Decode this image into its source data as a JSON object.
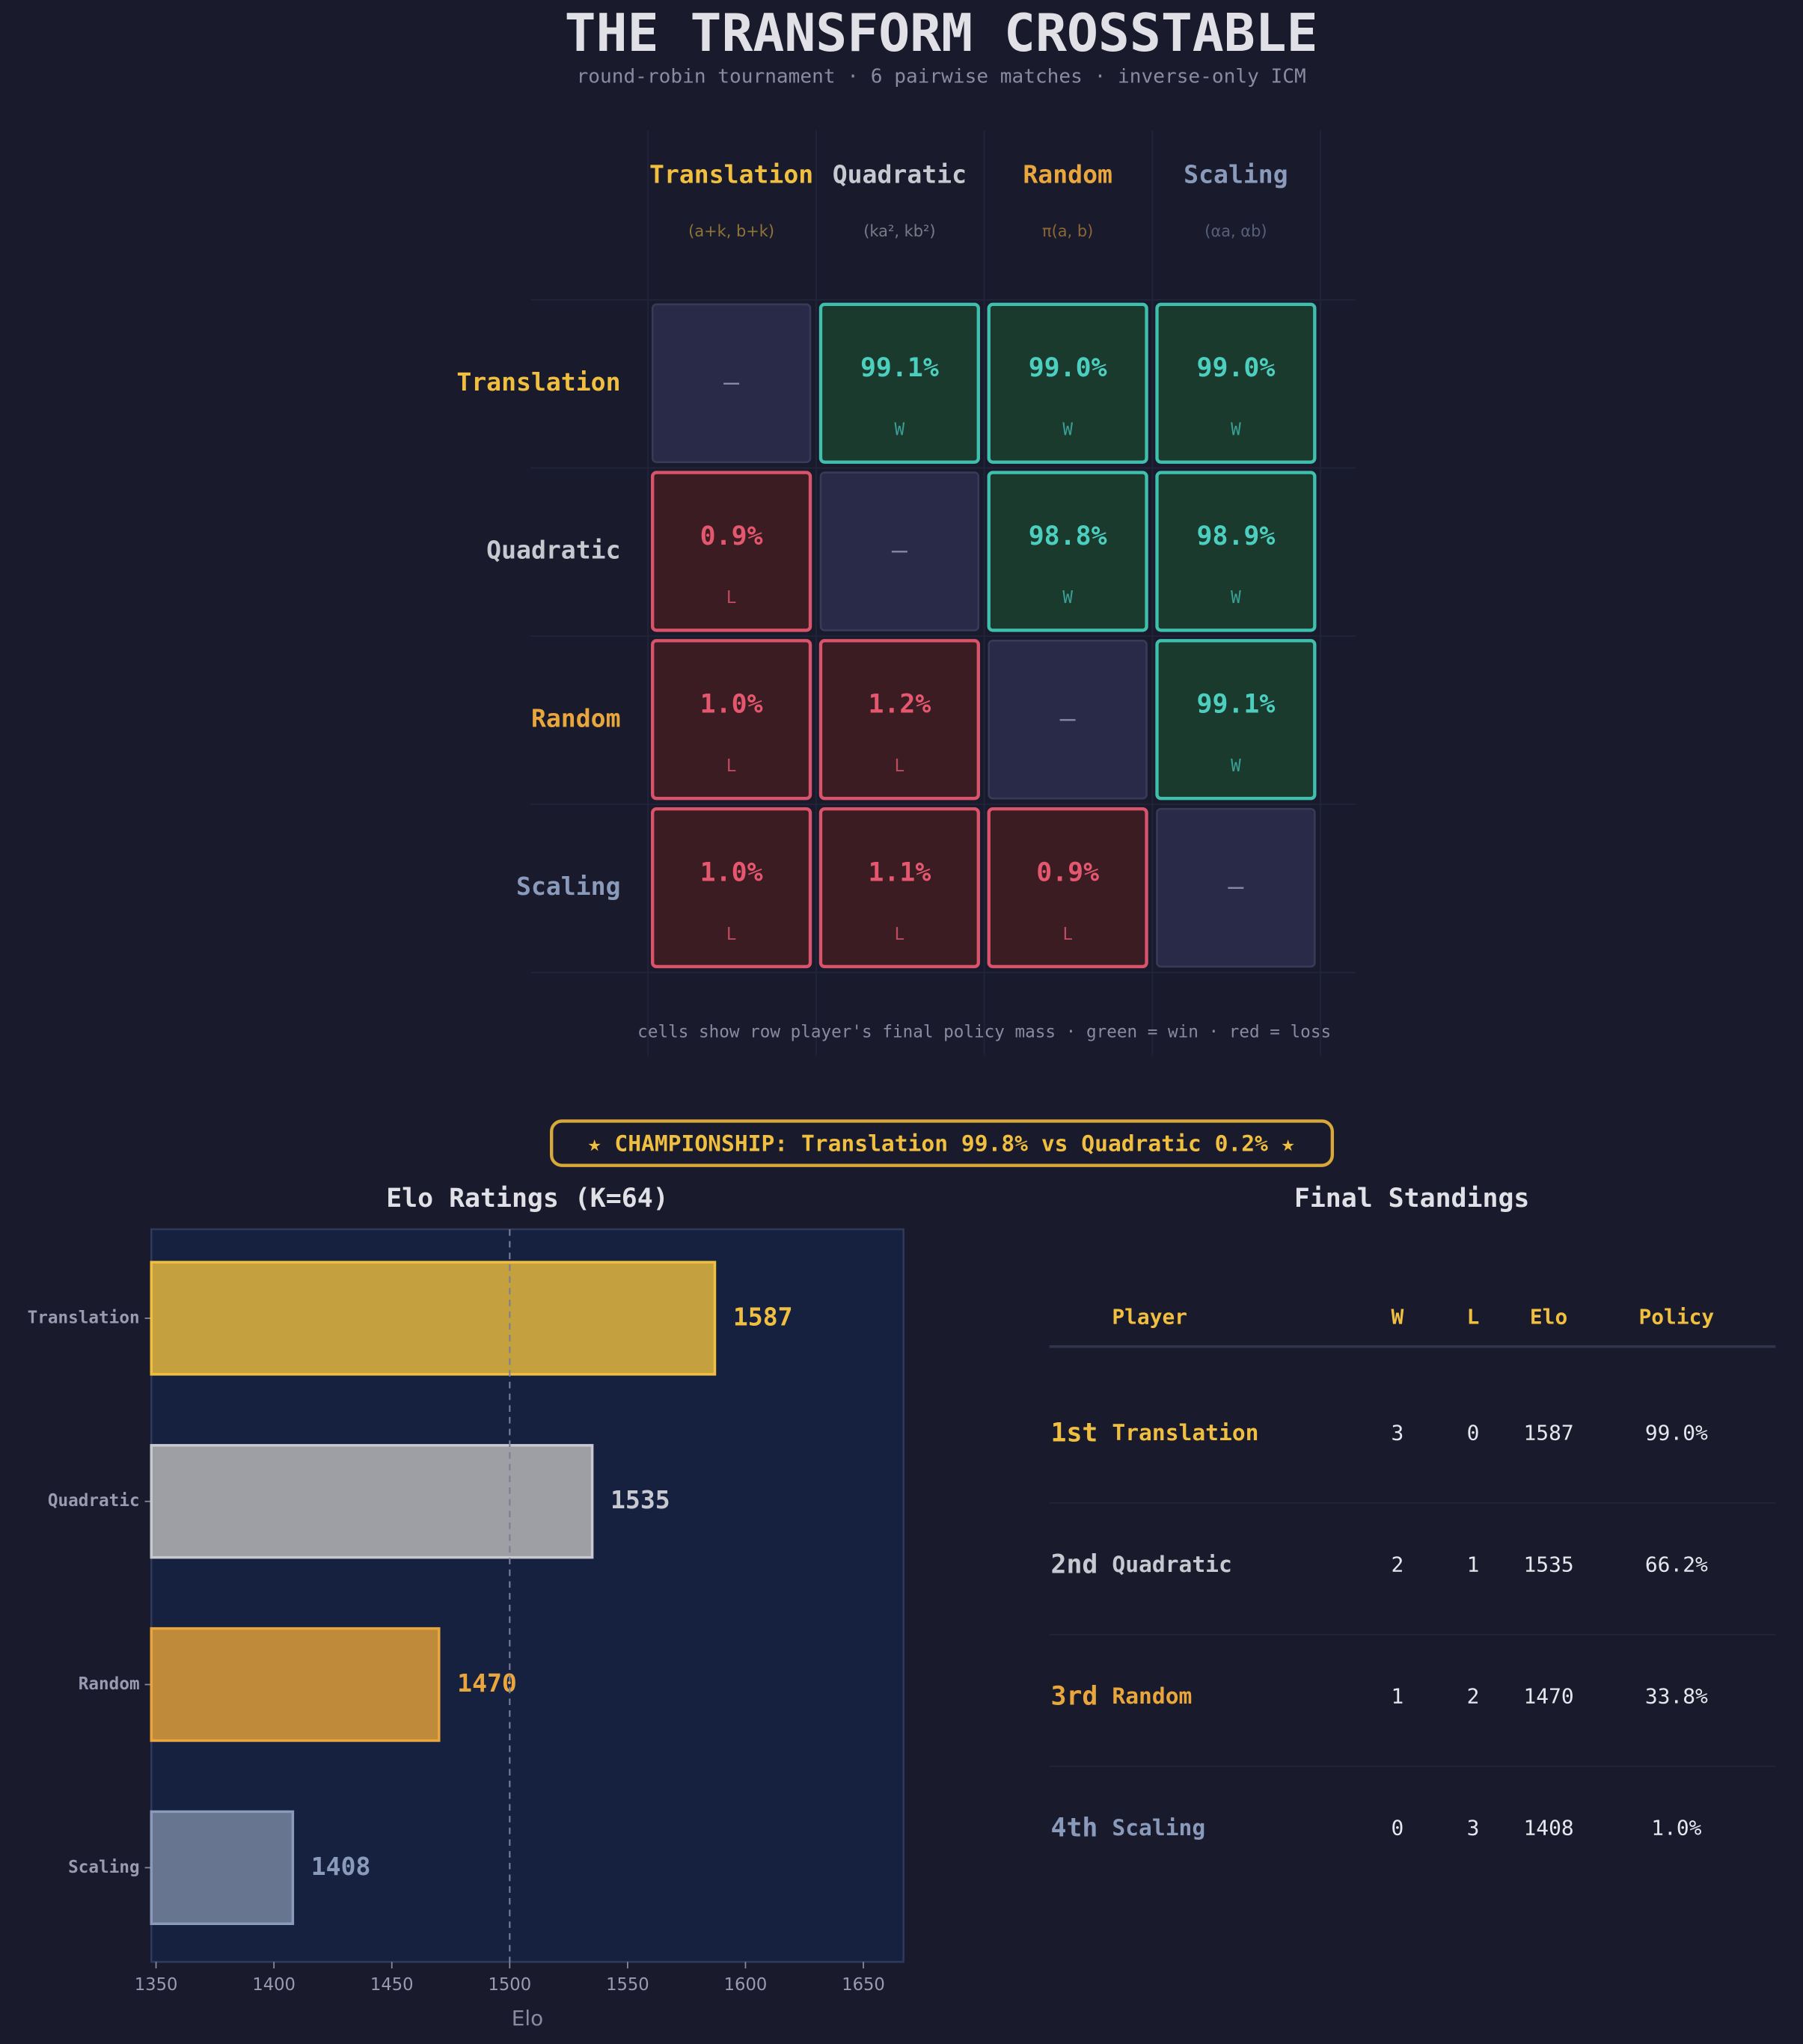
{
  "header": {
    "title": "THE  TRANSFORM  CROSSTABLE",
    "subtitle": "round-robin tournament  ·  6 pairwise matches  ·  inverse-only ICM"
  },
  "crosstable": {
    "columns": [
      {
        "name": "Translation",
        "formula": "(a+k, b+k)",
        "color": "#f0bf3f"
      },
      {
        "name": "Quadratic",
        "formula": "(ka², kb²)",
        "color": "#c8c9d0"
      },
      {
        "name": "Random",
        "formula": "π(a, b)",
        "color": "#e8a63c"
      },
      {
        "name": "Scaling",
        "formula": "(αa, αb)",
        "color": "#8a9abb"
      }
    ],
    "rows": [
      "Translation",
      "Quadratic",
      "Random",
      "Scaling"
    ],
    "cells": [
      [
        {
          "text": "—"
        },
        {
          "text": "99.1%",
          "result": "W"
        },
        {
          "text": "99.0%",
          "result": "W"
        },
        {
          "text": "99.0%",
          "result": "W"
        }
      ],
      [
        {
          "text": "0.9%",
          "result": "L"
        },
        {
          "text": "—"
        },
        {
          "text": "98.8%",
          "result": "W"
        },
        {
          "text": "98.9%",
          "result": "W"
        }
      ],
      [
        {
          "text": "1.0%",
          "result": "L"
        },
        {
          "text": "1.2%",
          "result": "L"
        },
        {
          "text": "—"
        },
        {
          "text": "99.1%",
          "result": "W"
        }
      ],
      [
        {
          "text": "1.0%",
          "result": "L"
        },
        {
          "text": "1.1%",
          "result": "L"
        },
        {
          "text": "0.9%",
          "result": "L"
        },
        {
          "text": "—"
        }
      ]
    ],
    "footnote": "cells show row player's final policy mass  ·  green = win  ·  red = loss"
  },
  "championship": "★ CHAMPIONSHIP:  Translation 99.8%  vs  Quadratic 0.2% ★",
  "chart_data": {
    "type": "bar",
    "orientation": "horizontal",
    "title": "Elo Ratings  (K=64)",
    "xlabel": "Elo",
    "categories": [
      "Translation",
      "Quadratic",
      "Random",
      "Scaling"
    ],
    "values": [
      1587,
      1535,
      1470,
      1408
    ],
    "colors": [
      "#cfa83f",
      "#a5a6ab",
      "#c8913a",
      "#6c7a96"
    ],
    "label_colors": [
      "#f0bf3f",
      "#c8c9d0",
      "#e8a63c",
      "#8a9abb"
    ],
    "xlim": [
      1348,
      1667
    ],
    "xticks": [
      1350,
      1400,
      1450,
      1500,
      1550,
      1600,
      1650
    ],
    "refline": 1500
  },
  "standings": {
    "title": "Final Standings",
    "headers": [
      "Player",
      "W",
      "L",
      "Elo",
      "Policy"
    ],
    "rows": [
      {
        "rank": "1st",
        "player": "Translation",
        "w": "3",
        "l": "0",
        "elo": "1587",
        "policy": "99.0%"
      },
      {
        "rank": "2nd",
        "player": "Quadratic",
        "w": "2",
        "l": "1",
        "elo": "1535",
        "policy": "66.2%"
      },
      {
        "rank": "3rd",
        "player": "Random",
        "w": "1",
        "l": "2",
        "elo": "1470",
        "policy": "33.8%"
      },
      {
        "rank": "4th",
        "player": "Scaling",
        "w": "0",
        "l": "3",
        "elo": "1408",
        "policy": "1.0%"
      }
    ]
  }
}
